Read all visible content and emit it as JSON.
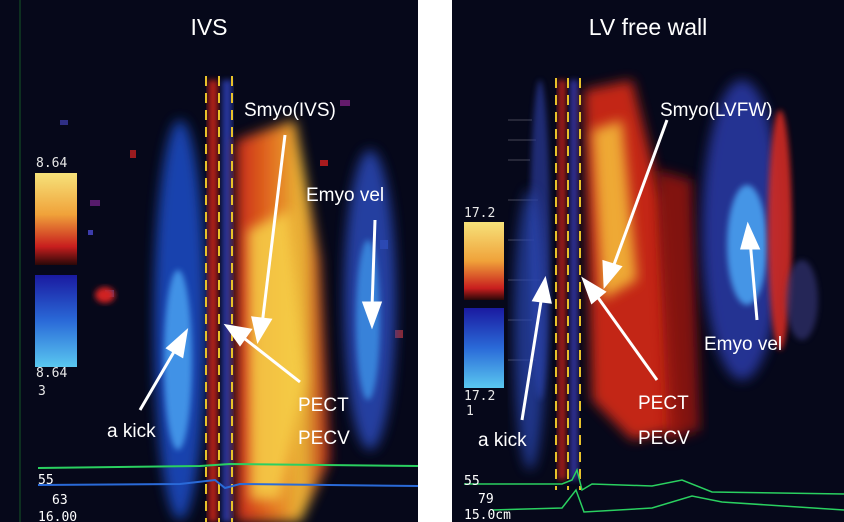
{
  "panels": {
    "left": {
      "title": "IVS",
      "scale_top": "8.64",
      "scale_bottom": "8.64",
      "scale_bottom_sub": "3",
      "labels": {
        "smyo": "Smyo(IVS)",
        "emyo": "Emyo vel",
        "akick": "a kick",
        "pect": "PECT",
        "pecv": "PECV"
      },
      "trace_text": [
        "55",
        "63",
        "16.00"
      ]
    },
    "right": {
      "title": "LV free wall",
      "scale_top": "17.2",
      "scale_bottom": "17.2",
      "scale_bottom_sub": "1",
      "labels": {
        "smyo": "Smyo(LVFW)",
        "emyo": "Emyo vel",
        "akick": "a kick",
        "pect": "PECT",
        "pecv": "PECV"
      },
      "trace_text": [
        "55",
        "79",
        "15.0cm"
      ]
    }
  },
  "colors": {
    "background": "#06081a",
    "dashed_markers": "#e8c22a",
    "arrows": "#ffffff"
  }
}
